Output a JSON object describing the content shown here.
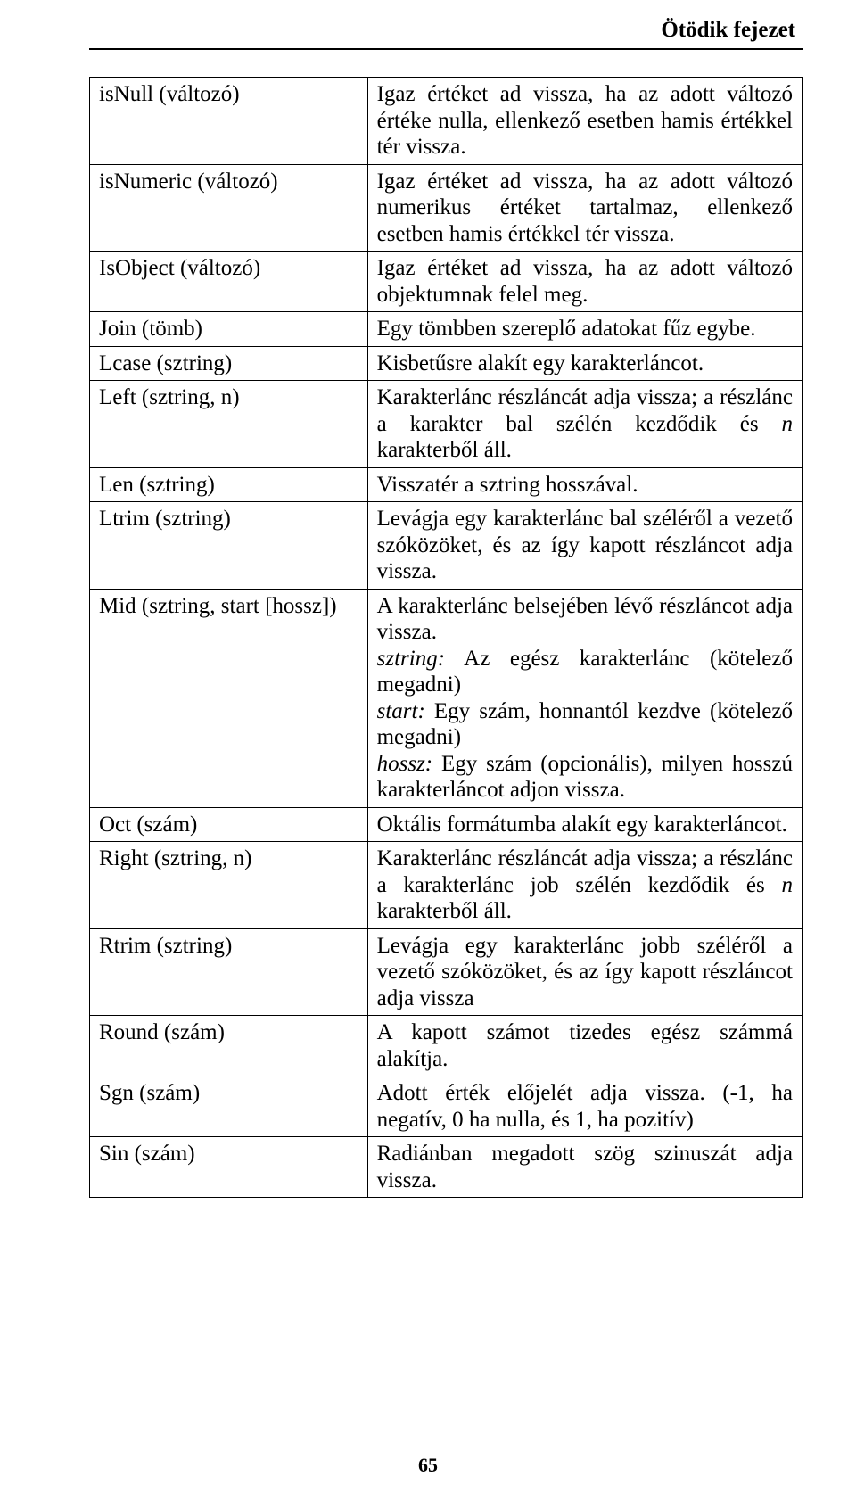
{
  "chapter_header": "Ötödik fejezet",
  "page_number": "65",
  "table": {
    "rows": [
      {
        "fn": "isNull (változó)",
        "desc_html": "Igaz értéket ad vissza, ha az adott változó értéke nulla, ellenkező esetben hamis értékkel tér vissza."
      },
      {
        "fn": "isNumeric (változó)",
        "desc_html": "Igaz értéket ad vissza, ha az adott változó numerikus értéket tartalmaz, ellenkező esetben hamis értékkel tér vissza."
      },
      {
        "fn": "IsObject (változó)",
        "desc_html": "Igaz értéket ad vissza, ha az adott változó objektumnak felel meg."
      },
      {
        "fn": "Join (tömb)",
        "desc_html": "Egy tömbben szereplő adatokat fűz egybe."
      },
      {
        "fn": "Lcase (sztring)",
        "desc_html": "Kisbetűsre alakít egy karakterláncot."
      },
      {
        "fn": "Left (sztring, n)",
        "desc_html": "Karakterlánc részláncát adja vissza; a részlánc a karakter bal szélén kezdődik és <span class=\"italic\">n</span> karakterből áll."
      },
      {
        "fn": "Len (sztring)",
        "desc_html": "Visszatér a sztring hosszával."
      },
      {
        "fn": "Ltrim (sztring)",
        "desc_html": "Levágja egy karakterlánc bal széléről a vezető szóközöket, és az így kapott részláncot adja vissza."
      },
      {
        "fn": "Mid (sztring, start [hossz])",
        "desc_html": "A karakterlánc belsejében lévő részláncot adja vissza.<br><span class=\"italic\">sztring:</span> Az egész karakterlánc (kötelező megadni)<br><span class=\"italic\">start:</span> Egy szám, honnantól kezdve (kötelező megadni)<br><span class=\"italic\">hossz:</span> Egy szám (opcionális), milyen hosszú karakterláncot adjon vissza."
      },
      {
        "fn": "Oct (szám)",
        "desc_html": "Oktális formátumba alakít egy karakterláncot."
      },
      {
        "fn": "Right (sztring, n)",
        "desc_html": "Karakterlánc részláncát adja vissza; a részlánc a karakterlánc job szélén kezdődik és <span class=\"italic\">n</span> karakterből áll."
      },
      {
        "fn": "Rtrim (sztring)",
        "desc_html": "Levágja egy karakterlánc jobb széléről a vezető szóközöket, és az így kapott részláncot adja vissza"
      },
      {
        "fn": "Round (szám)",
        "desc_html": "A kapott számot tizedes egész számmá alakítja."
      },
      {
        "fn": "Sgn (szám)",
        "desc_html": "Adott érték előjelét adja vissza. (-1, ha negatív, 0 ha nulla, és 1, ha pozitív)"
      },
      {
        "fn": "Sin (szám)",
        "desc_html": "Radiánban megadott szög szinuszát adja vissza."
      }
    ]
  }
}
